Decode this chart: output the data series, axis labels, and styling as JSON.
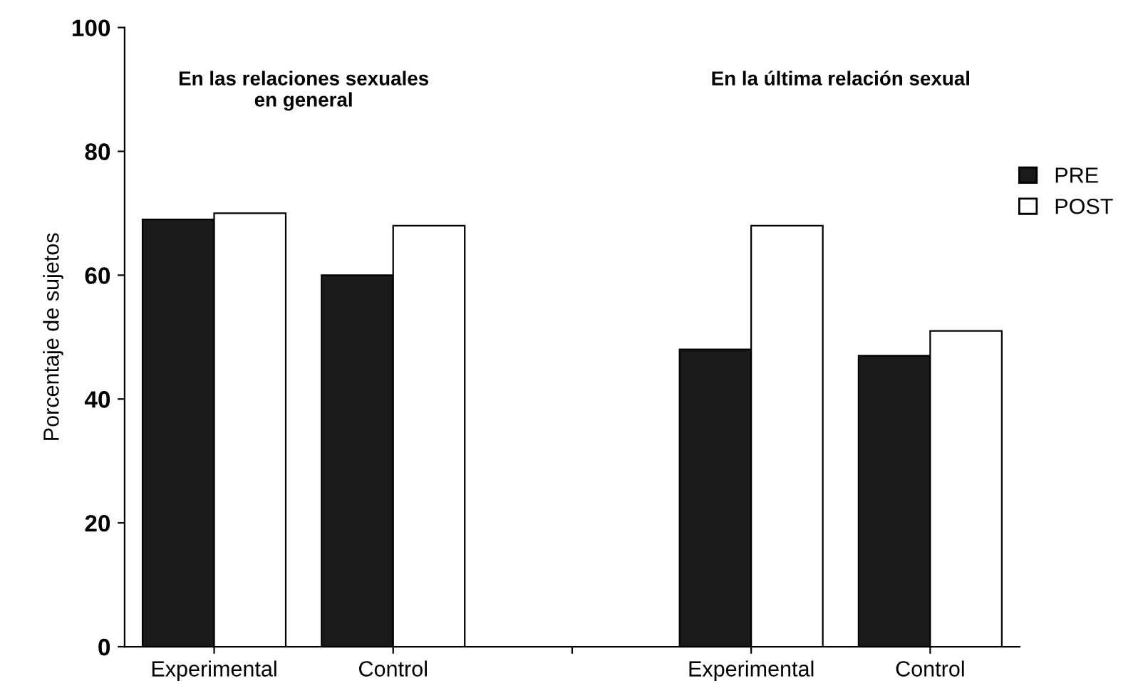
{
  "chart_data": {
    "type": "bar",
    "ylabel": "Porcentaje de sujetos",
    "categories": [
      "Experimental",
      "Control",
      null,
      "Experimental",
      "Control"
    ],
    "series": [
      {
        "name": "PRE",
        "color": "#1a1a1a",
        "values": [
          69,
          60,
          null,
          48,
          47
        ]
      },
      {
        "name": "POST",
        "color": "#ffffff",
        "values": [
          70,
          68,
          null,
          68,
          51
        ]
      }
    ],
    "ylim": [
      0,
      100
    ],
    "yticks": [
      0,
      20,
      40,
      60,
      80,
      100
    ],
    "annotations": [
      "En las relaciones sexuales\nen general",
      "En la última relación sexual"
    ],
    "grid": false,
    "legend": "right"
  }
}
